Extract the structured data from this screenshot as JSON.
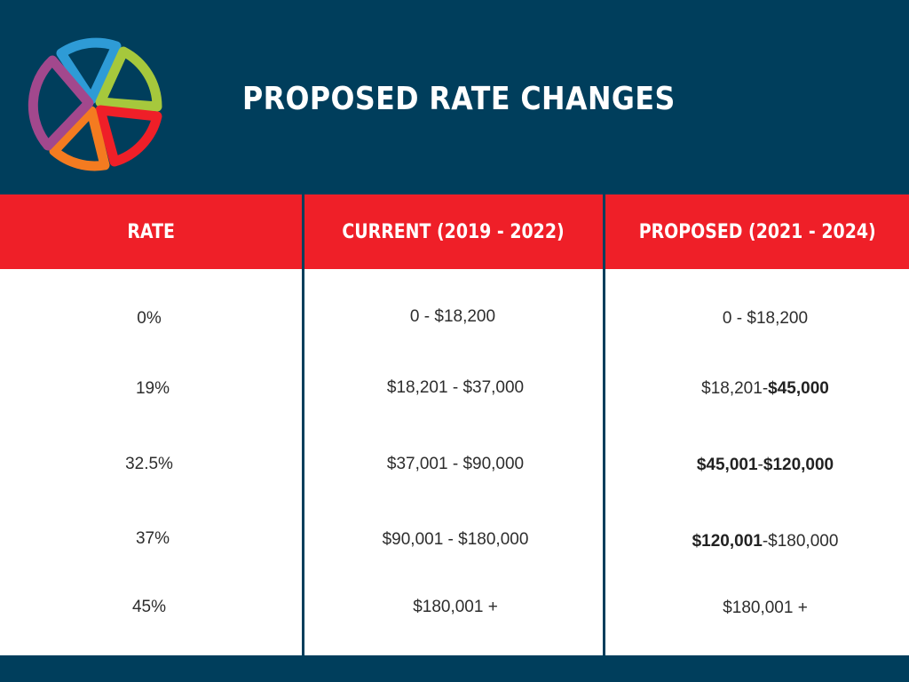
{
  "header": {
    "title": "PROPOSED RATE CHANGES",
    "logo_colors": [
      "#2e9bd6",
      "#a6c83c",
      "#ef1f28",
      "#f47b20",
      "#a2488d"
    ]
  },
  "table": {
    "columns": [
      "RATE",
      "CURRENT (2019 - 2022)",
      "PROPOSED (2021 - 2024)"
    ],
    "rows": [
      {
        "rate": "0%",
        "current": "0 - $18,200",
        "proposed": {
          "a": "0 - $18,200",
          "a_bold": false,
          "sep": "",
          "b": "",
          "b_bold": false
        }
      },
      {
        "rate": "19%",
        "current": "$18,201 - $37,000",
        "proposed": {
          "a": "$18,201",
          "a_bold": false,
          "sep": " - ",
          "b": "$45,000",
          "b_bold": true
        }
      },
      {
        "rate": "32.5%",
        "current": "$37,001 - $90,000",
        "proposed": {
          "a": "$45,001",
          "a_bold": true,
          "sep": " - ",
          "b": "$120,000",
          "b_bold": true
        }
      },
      {
        "rate": "37%",
        "current": "$90,001 - $180,000",
        "proposed": {
          "a": "$120,001",
          "a_bold": true,
          "sep": " - ",
          "b": "$180,000",
          "b_bold": false
        }
      },
      {
        "rate": "45%",
        "current": "$180,001 +",
        "proposed": {
          "a": "$180,001 +",
          "a_bold": false,
          "sep": "",
          "b": "",
          "b_bold": false
        }
      }
    ]
  },
  "colors": {
    "navy": "#003e5c",
    "red": "#ef1f28",
    "white": "#ffffff"
  }
}
